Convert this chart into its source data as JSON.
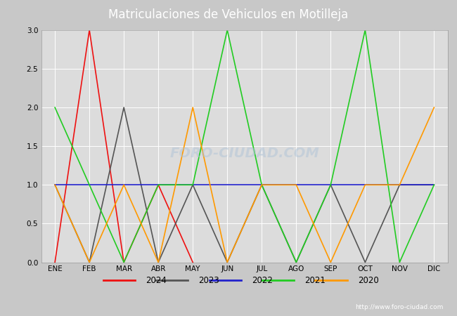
{
  "title": "Matriculaciones de Vehiculos en Motilleja",
  "months": [
    "ENE",
    "FEB",
    "MAR",
    "ABR",
    "MAY",
    "JUN",
    "JUL",
    "AGO",
    "SEP",
    "OCT",
    "NOV",
    "DIC"
  ],
  "series": {
    "2024": {
      "values": [
        0,
        3,
        0,
        1,
        0,
        null,
        null,
        null,
        null,
        null,
        null,
        null
      ],
      "color": "#ee1111"
    },
    "2023": {
      "values": [
        1,
        0,
        2,
        0,
        1,
        0,
        1,
        0,
        1,
        0,
        1,
        1
      ],
      "color": "#555555"
    },
    "2022": {
      "values": [
        1,
        1,
        1,
        1,
        1,
        1,
        1,
        1,
        1,
        1,
        1,
        1
      ],
      "color": "#2222cc"
    },
    "2021": {
      "values": [
        2,
        1,
        0,
        1,
        1,
        3,
        1,
        0,
        1,
        3,
        0,
        1
      ],
      "color": "#22cc22"
    },
    "2020": {
      "values": [
        1,
        0,
        1,
        0,
        2,
        0,
        1,
        1,
        0,
        1,
        1,
        2
      ],
      "color": "#ff9900"
    }
  },
  "series_order": [
    "2024",
    "2023",
    "2022",
    "2021",
    "2020"
  ],
  "ylim": [
    0.0,
    3.0
  ],
  "yticks": [
    0.0,
    0.5,
    1.0,
    1.5,
    2.0,
    2.5,
    3.0
  ],
  "grid_color": "#ffffff",
  "plot_bg": "#dcdcdc",
  "fig_bg": "#c8c8c8",
  "title_bg": "#4f76bb",
  "title_fg": "#ffffff",
  "title_fontsize": 12,
  "legend_bg": "#e8e8e8",
  "legend_border": "#aaaaaa",
  "footer_bg": "#4f76bb",
  "footer_text": "http://www.foro-ciudad.com",
  "footer_fg": "#ffffff",
  "watermark": "FORO-CIUDAD.COM",
  "watermark_color": "#b0c4d8",
  "watermark_alpha": 0.5
}
